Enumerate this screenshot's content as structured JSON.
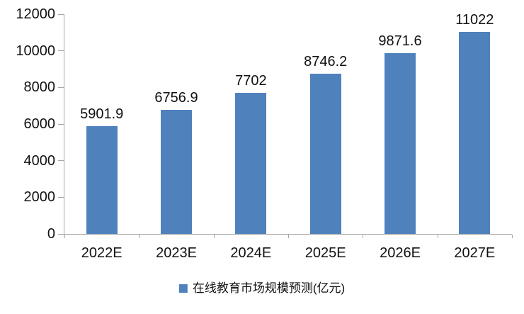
{
  "colors": {
    "bar_fill": "#4f81bd",
    "axis_line": "#a6a6a6",
    "label_text": "#111111",
    "background": "#ffffff"
  },
  "chart_data": {
    "type": "bar",
    "title": "",
    "xlabel": "",
    "ylabel": "",
    "categories": [
      "2022E",
      "2023E",
      "2024E",
      "2025E",
      "2026E",
      "2027E"
    ],
    "values": [
      5901.9,
      6756.9,
      7702,
      8746.2,
      9871.6,
      11022
    ],
    "value_labels": [
      "5901.9",
      "6756.9",
      "7702",
      "8746.2",
      "9871.6",
      "11022"
    ],
    "series_name": "在线教育市场规模预测(亿元)",
    "legend": {
      "label": "在线教育市场规模预测(亿元)",
      "position": "bottom",
      "swatch_icon": "legend-square"
    },
    "ylim": [
      0,
      12000
    ],
    "yticks": [
      {
        "value": 0,
        "label": "0"
      },
      {
        "value": 2000,
        "label": "2000"
      },
      {
        "value": 4000,
        "label": "4000"
      },
      {
        "value": 6000,
        "label": "6000"
      },
      {
        "value": 8000,
        "label": "8000"
      },
      {
        "value": 10000,
        "label": "10000"
      },
      {
        "value": 12000,
        "label": "12000"
      }
    ],
    "grid": false,
    "data_labels_shown": true
  }
}
